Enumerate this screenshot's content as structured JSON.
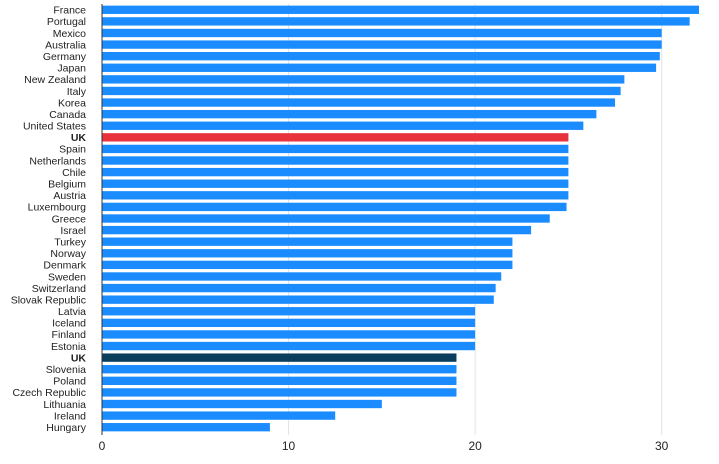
{
  "chart_data": {
    "type": "bar",
    "orientation": "horizontal",
    "categories": [
      "France",
      "Portugal",
      "Mexico",
      "Australia",
      "Germany",
      "Japan",
      "New Zealand",
      "Italy",
      "Korea",
      "Canada",
      "United States",
      "UK",
      "Spain",
      "Netherlands",
      "Chile",
      "Belgium",
      "Austria",
      "Luxembourg",
      "Greece",
      "Israel",
      "Turkey",
      "Norway",
      "Denmark",
      "Sweden",
      "Switzerland",
      "Slovak Republic",
      "Latvia",
      "Iceland",
      "Finland",
      "Estonia",
      "UK",
      "Slovenia",
      "Poland",
      "Czech Republic",
      "Lithuania",
      "Ireland",
      "Hungary"
    ],
    "values": [
      32,
      31.5,
      30,
      30,
      29.9,
      29.7,
      28,
      27.8,
      27.5,
      26.5,
      25.8,
      25,
      25,
      25,
      25,
      25,
      25,
      24.9,
      24,
      23,
      22,
      22,
      22,
      21.4,
      21.1,
      21,
      20,
      20,
      20,
      20,
      19,
      19,
      19,
      19,
      15,
      12.5,
      9
    ],
    "highlight": {
      "11": "#e8323c",
      "30": "#0b3d5c"
    },
    "bold_categories": [
      11,
      30
    ],
    "bar_color": "#1a8cff",
    "xlim": [
      0,
      32
    ],
    "x_ticks": [
      0,
      10,
      20,
      30
    ],
    "grid": true,
    "title": "",
    "xlabel": "",
    "ylabel": ""
  }
}
